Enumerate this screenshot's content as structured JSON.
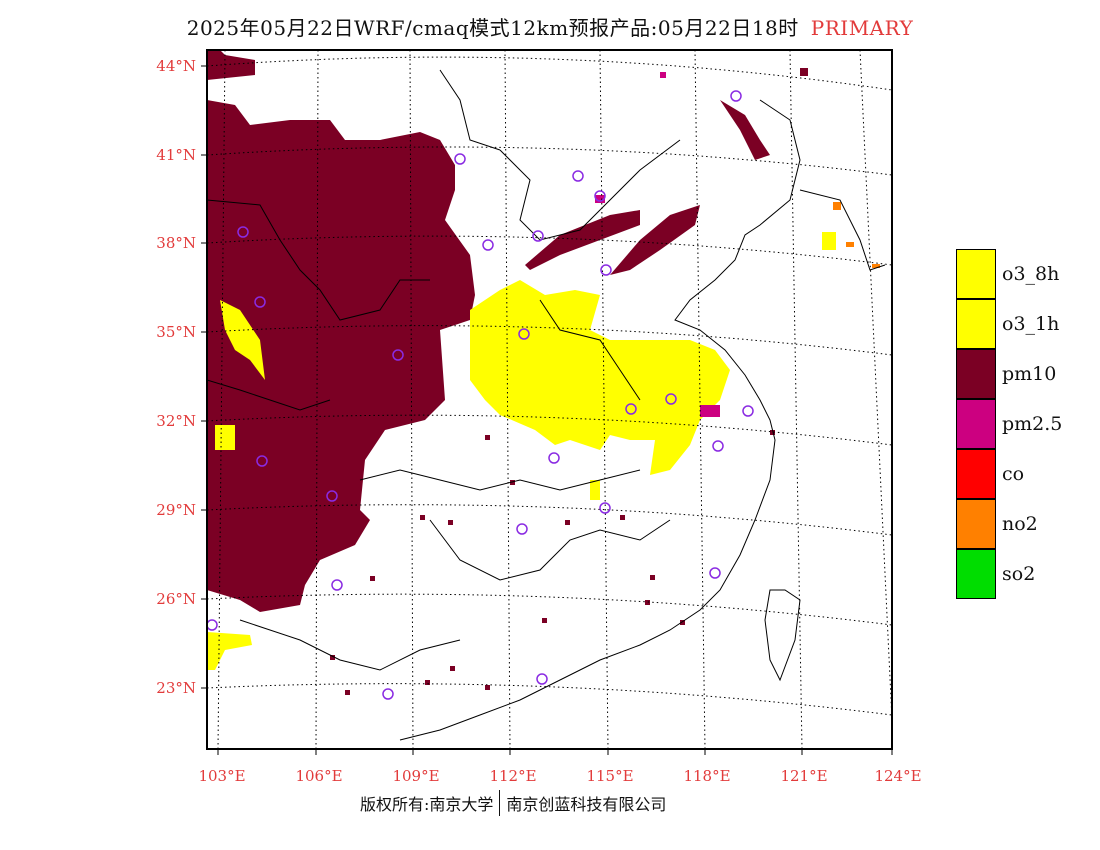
{
  "title": {
    "main": "2025年05月22日WRF/cmaq模式12km预报产品:05月22日18时",
    "tag": "PRIMARY"
  },
  "axes": {
    "lat_labels": [
      "44°N",
      "41°N",
      "38°N",
      "35°N",
      "32°N",
      "29°N",
      "26°N",
      "23°N"
    ],
    "lon_labels": [
      "103°E",
      "106°E",
      "109°E",
      "112°E",
      "115°E",
      "118°E",
      "121°E",
      "124°E"
    ]
  },
  "legend": [
    {
      "name": "o3_8h",
      "color": "#ffff00"
    },
    {
      "name": "o3_1h",
      "color": "#ffff00"
    },
    {
      "name": "pm10",
      "color": "#7b0024"
    },
    {
      "name": "pm2.5",
      "color": "#cc0080"
    },
    {
      "name": "co",
      "color": "#ff0000"
    },
    {
      "name": "no2",
      "color": "#ff8000"
    },
    {
      "name": "so2",
      "color": "#00dd00"
    }
  ],
  "footer": {
    "left": "版权所有:南京大学",
    "right": "南京创蓝科技有限公司"
  },
  "colors": {
    "pm10": "#7b0024",
    "ozone": "#ffff00",
    "pm25": "#cc0080",
    "no2": "#ff8000",
    "station": "#8a2be2",
    "label": "#e23b3b"
  }
}
